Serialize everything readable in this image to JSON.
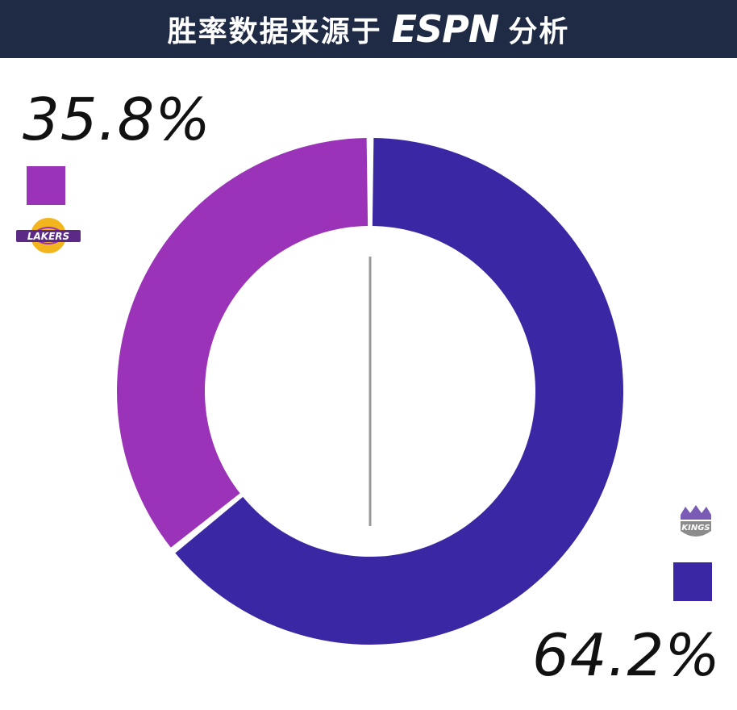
{
  "header": {
    "title_prefix": "胜率数据来源于",
    "brand": "ESPN",
    "title_suffix": "分析"
  },
  "teams": {
    "lakers": {
      "percent_label": "35.8%",
      "logo_icon": "lakers-logo-icon",
      "logo_text": "LAKERS"
    },
    "kings": {
      "percent_label": "64.2%",
      "logo_icon": "kings-logo-icon",
      "logo_text": "KINGS"
    }
  },
  "colors": {
    "header_bg": "#1f2a44",
    "lakers": "#9a33b8",
    "kings": "#3a27a3",
    "lakers_gold": "#f2b51d",
    "divider": "#9a9a9a"
  },
  "chart_data": {
    "type": "pie",
    "style": "donut",
    "categories": [
      "LAKERS",
      "KINGS"
    ],
    "values": [
      35.8,
      64.2
    ],
    "value_labels": [
      "35.8%",
      "64.2%"
    ],
    "colors": [
      "#9a33b8",
      "#3a27a3"
    ],
    "start": "top",
    "direction": "counterclockwise-first-slice"
  }
}
